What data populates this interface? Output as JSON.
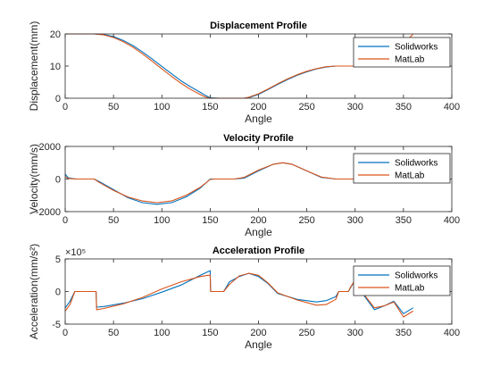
{
  "chart_data": [
    {
      "type": "line",
      "title": "Displacement Profile",
      "xlabel": "Angle",
      "ylabel": "Displacement(mm)",
      "xlim": [
        0,
        400
      ],
      "ylim": [
        0,
        20
      ],
      "xticks": [
        0,
        50,
        100,
        150,
        200,
        250,
        300,
        350,
        400
      ],
      "yticks": [
        0,
        10,
        20
      ],
      "ytick_labels": [
        "0",
        "10",
        "20"
      ],
      "legend": "right",
      "grid": false,
      "series": [
        {
          "name": "Solidworks",
          "color": "#0072BD",
          "x": [
            0,
            30,
            40,
            50,
            60,
            70,
            80,
            90,
            100,
            110,
            120,
            130,
            140,
            145,
            150,
            160,
            170,
            180,
            185,
            190,
            200,
            210,
            220,
            230,
            240,
            250,
            260,
            270,
            280,
            290,
            300,
            310,
            320,
            330,
            340,
            350,
            360
          ],
          "y": [
            20,
            20,
            19.8,
            19.2,
            18,
            16.4,
            14.4,
            12.2,
            9.9,
            7.6,
            5.4,
            3.5,
            1.8,
            0.9,
            0.1,
            0,
            0,
            0,
            0,
            0.2,
            1.2,
            2.7,
            4.3,
            5.8,
            7.1,
            8.2,
            9.1,
            9.7,
            10,
            10,
            10,
            10,
            10,
            10,
            10,
            10,
            10
          ]
        },
        {
          "name": "MatLab",
          "color": "#D95319",
          "x": [
            0,
            30,
            40,
            50,
            60,
            70,
            80,
            90,
            100,
            110,
            120,
            130,
            140,
            145,
            150,
            160,
            170,
            180,
            185,
            190,
            200,
            210,
            220,
            230,
            240,
            250,
            260,
            270,
            280,
            290,
            300,
            310,
            320,
            330,
            340,
            350,
            355,
            360
          ],
          "y": [
            20,
            20,
            19.7,
            18.9,
            17.6,
            15.9,
            13.8,
            11.5,
            9.1,
            6.8,
            4.6,
            2.7,
            1.1,
            0.4,
            0,
            0,
            0,
            0,
            0,
            0.3,
            1.4,
            2.9,
            4.5,
            6,
            7.3,
            8.4,
            9.2,
            9.8,
            10,
            10,
            10,
            10,
            10,
            10,
            10,
            10,
            18.5,
            19.9
          ]
        }
      ]
    },
    {
      "type": "line",
      "title": "Velocity Profile",
      "xlabel": "Angle",
      "ylabel": "Velocity(mm/s)",
      "xlim": [
        0,
        400
      ],
      "ylim": [
        -2000,
        2000
      ],
      "xticks": [
        0,
        50,
        100,
        150,
        200,
        250,
        300,
        350,
        400
      ],
      "yticks": [
        -2000,
        0,
        2000
      ],
      "ytick_labels": [
        "-2000",
        "0",
        "2000"
      ],
      "legend": "right",
      "grid": false,
      "series": [
        {
          "name": "Solidworks",
          "color": "#0072BD",
          "x": [
            0,
            3,
            8,
            12,
            30,
            35,
            50,
            65,
            80,
            95,
            110,
            125,
            140,
            150,
            155,
            175,
            185,
            200,
            215,
            225,
            235,
            250,
            265,
            280,
            290,
            300,
            340,
            350,
            360
          ],
          "y": [
            300,
            80,
            20,
            0,
            0,
            -150,
            -650,
            -1150,
            -1450,
            -1550,
            -1450,
            -1100,
            -550,
            0,
            0,
            0,
            50,
            500,
            900,
            1000,
            900,
            500,
            100,
            0,
            0,
            0,
            0,
            0,
            0
          ]
        },
        {
          "name": "MatLab",
          "color": "#D95319",
          "x": [
            0,
            3,
            8,
            12,
            30,
            35,
            50,
            65,
            80,
            95,
            110,
            125,
            140,
            150,
            155,
            175,
            185,
            200,
            215,
            225,
            235,
            250,
            265,
            280,
            290,
            300,
            340,
            350,
            360
          ],
          "y": [
            150,
            40,
            10,
            0,
            0,
            -200,
            -700,
            -1100,
            -1350,
            -1450,
            -1350,
            -1000,
            -500,
            -30,
            0,
            0,
            100,
            550,
            900,
            1000,
            900,
            500,
            120,
            0,
            0,
            0,
            0,
            0,
            0
          ]
        }
      ]
    },
    {
      "type": "line",
      "title": "Acceleration Profile",
      "xlabel": "Angle",
      "ylabel": "Acceleration(mm/s²)",
      "exponent_label": "×10⁵",
      "xlim": [
        0,
        400
      ],
      "ylim": [
        -5,
        5
      ],
      "xticks": [
        0,
        50,
        100,
        150,
        200,
        250,
        300,
        350,
        400
      ],
      "yticks": [
        -5,
        0,
        5
      ],
      "ytick_labels": [
        "-5",
        "0",
        "5"
      ],
      "legend": "right",
      "grid": false,
      "series": [
        {
          "name": "Solidworks",
          "color": "#0072BD",
          "x": [
            0,
            5,
            10,
            15,
            32,
            32.5,
            40,
            60,
            80,
            100,
            120,
            140,
            150,
            150.5,
            152,
            164,
            170,
            180,
            190,
            200,
            210,
            220,
            240,
            260,
            270,
            280,
            283,
            290,
            293,
            295,
            300,
            310,
            320,
            330,
            340,
            350,
            360
          ],
          "y": [
            -2.5,
            -1.5,
            0,
            0,
            0,
            -2.4,
            -2.3,
            -1.8,
            -1.1,
            -0.1,
            1,
            2.5,
            3.2,
            0,
            0,
            0,
            1.5,
            2.3,
            2.8,
            2.3,
            1.2,
            -0.3,
            -1.2,
            -1.6,
            -1.4,
            -0.8,
            0,
            0,
            0,
            0.5,
            1.8,
            -0.8,
            -2.8,
            -2.2,
            -1.5,
            -3.4,
            -2.5
          ]
        },
        {
          "name": "MatLab",
          "color": "#D95319",
          "x": [
            0,
            5,
            10,
            15,
            32,
            32.5,
            40,
            60,
            80,
            100,
            120,
            140,
            148,
            150,
            150.5,
            152,
            164,
            170,
            180,
            190,
            200,
            210,
            220,
            240,
            260,
            270,
            280,
            283,
            290,
            293,
            295,
            300,
            310,
            320,
            330,
            340,
            350,
            360
          ],
          "y": [
            -3,
            -2,
            0,
            0,
            0,
            -2.8,
            -2.6,
            -1.9,
            -0.9,
            0.4,
            1.5,
            2.3,
            2.5,
            2.5,
            0,
            0,
            0,
            1.1,
            2.4,
            2.8,
            2.5,
            1.3,
            -0.2,
            -1.3,
            -2.1,
            -2,
            -1.2,
            0,
            0,
            0,
            0.6,
            1.8,
            -0.6,
            -2.5,
            -2.2,
            -1.6,
            -3.9,
            -3
          ]
        }
      ]
    }
  ]
}
